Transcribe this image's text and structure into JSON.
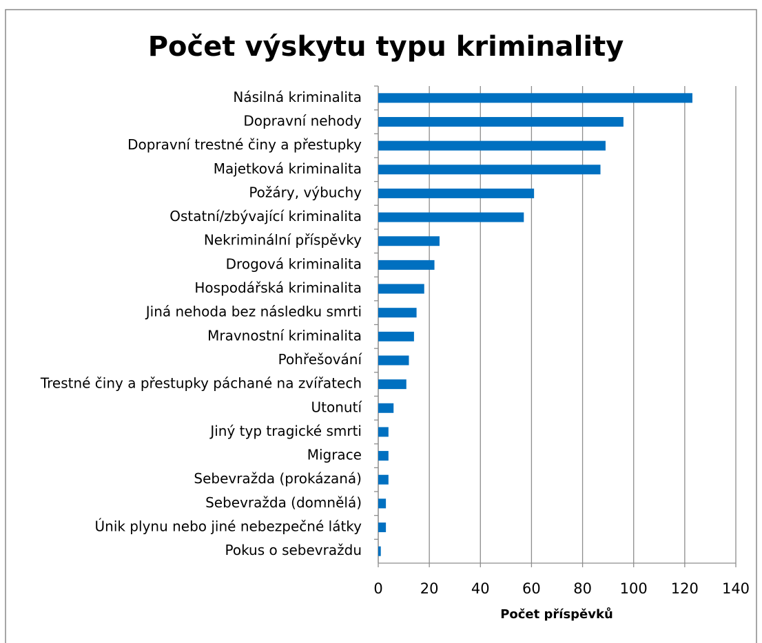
{
  "chart_data": {
    "type": "bar",
    "orientation": "horizontal",
    "title": "Počet výskytu typu kriminality",
    "x_label": "Počet příspěvků",
    "categories": [
      "Násilná kriminalita",
      "Dopravní nehody",
      "Dopravní trestné činy a přestupky",
      "Majetková kriminalita",
      "Požáry, výbuchy",
      "Ostatní/zbývající kriminalita",
      "Nekriminální příspěvky",
      "Drogová kriminalita",
      "Hospodářská kriminalita",
      "Jiná nehoda bez následku smrti",
      "Mravnostní kriminalita",
      "Pohřešování",
      "Trestné činy a přestupky páchané na zvířatech",
      "Utonutí",
      "Jiný typ tragické smrti",
      "Migrace",
      "Sebevražda (prokázaná)",
      "Sebevražda (domnělá)",
      "Únik plynu nebo jiné nebezpečné látky",
      "Pokus o sebevraždu"
    ],
    "values": [
      123,
      96,
      89,
      87,
      61,
      57,
      24,
      22,
      18,
      15,
      14,
      12,
      11,
      6,
      4,
      4,
      4,
      3,
      3,
      1
    ],
    "color": "#0070c0",
    "xlim": [
      0,
      140
    ],
    "xticks": [
      0,
      20,
      40,
      60,
      80,
      100,
      120,
      140
    ],
    "grid": true
  }
}
